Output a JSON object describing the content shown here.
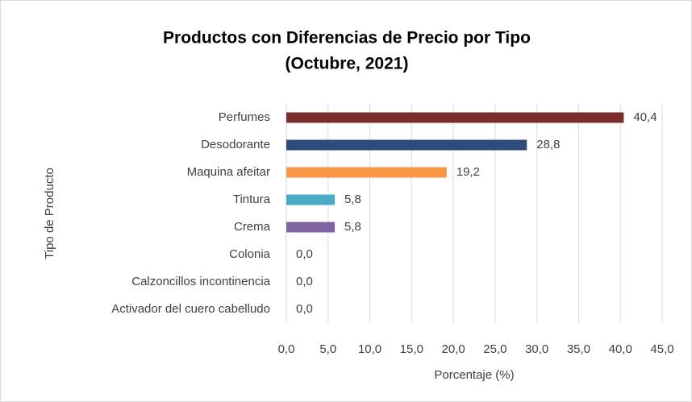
{
  "chart_data": {
    "type": "bar",
    "orientation": "horizontal",
    "title": "Productos con Diferencias de Precio por Tipo",
    "subtitle": "(Octubre, 2021)",
    "x_label": "Porcentaje (%)",
    "y_label": "Tipo de Producto",
    "categories": [
      "Perfumes",
      "Desodorante",
      "Maquina afeitar",
      "Tintura",
      "Crema",
      "Colonia",
      "Calzoncillos incontinencia",
      "Activador del cuero cabelludo"
    ],
    "values": [
      40.4,
      28.8,
      19.2,
      5.8,
      5.8,
      0,
      0,
      0
    ],
    "value_labels": [
      "40,4",
      "28,8",
      "19,2",
      "5,8",
      "5,8",
      "0,0",
      "0,0",
      "0,0"
    ],
    "colors": [
      "#7b2c2c",
      "#2e4a7a",
      "#f79646",
      "#4bacc6",
      "#8064a2",
      "#9bbb59",
      "#4f81bd",
      "#c0504d"
    ],
    "xlim": [
      0,
      45
    ],
    "xticks": [
      {
        "value": 0,
        "label": "0,0"
      },
      {
        "value": 5,
        "label": "5,0"
      },
      {
        "value": 10,
        "label": "10,0"
      },
      {
        "value": 15,
        "label": "15,0"
      },
      {
        "value": 20,
        "label": "20,0"
      },
      {
        "value": 25,
        "label": "25,0"
      },
      {
        "value": 30,
        "label": "30,0"
      },
      {
        "value": 35,
        "label": "35,0"
      },
      {
        "value": 40,
        "label": "40,0"
      },
      {
        "value": 45,
        "label": "45,0"
      }
    ],
    "grid": true
  }
}
